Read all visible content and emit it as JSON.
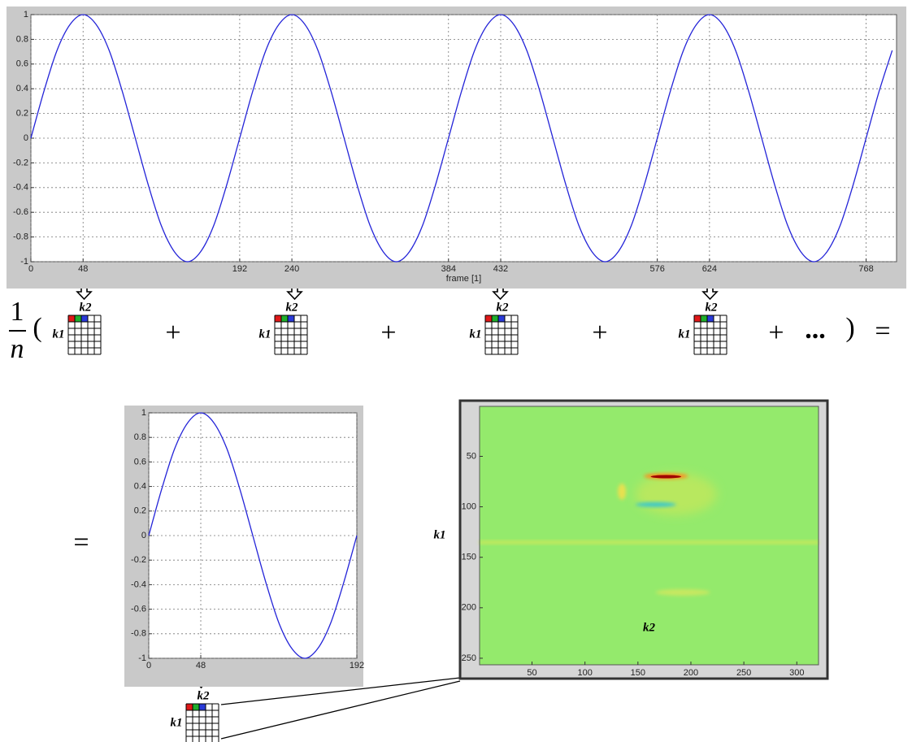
{
  "chart_data": [
    {
      "type": "line",
      "x_label": "frame [1]",
      "x": [
        0,
        12,
        24,
        36,
        48,
        60,
        72,
        84,
        96,
        108,
        120,
        132,
        144,
        156,
        168,
        180,
        192,
        204,
        216,
        228,
        240,
        252,
        264,
        276,
        288,
        300,
        312,
        324,
        336,
        348,
        360,
        372,
        384,
        396,
        408,
        420,
        432,
        444,
        456,
        468,
        480,
        492,
        504,
        516,
        528,
        540,
        552,
        564,
        576,
        588,
        600,
        612,
        624,
        636,
        648,
        660,
        672,
        684,
        696,
        708,
        720,
        732,
        744,
        756,
        768,
        780,
        792
      ],
      "series": [
        {
          "color": "#2424d8",
          "values": [
            0,
            0.38,
            0.71,
            0.92,
            1,
            0.92,
            0.71,
            0.38,
            0,
            -0.38,
            -0.71,
            -0.92,
            -1,
            -0.92,
            -0.71,
            -0.38,
            0,
            0.38,
            0.71,
            0.92,
            1,
            0.92,
            0.71,
            0.38,
            0,
            -0.38,
            -0.71,
            -0.92,
            -1,
            -0.92,
            -0.71,
            -0.38,
            0,
            0.38,
            0.71,
            0.92,
            1,
            0.92,
            0.71,
            0.38,
            0,
            -0.38,
            -0.71,
            -0.92,
            -1,
            -0.92,
            -0.71,
            -0.38,
            0,
            0.38,
            0.71,
            0.92,
            1,
            0.92,
            0.71,
            0.38,
            0,
            -0.38,
            -0.71,
            -0.92,
            -1,
            -0.92,
            -0.71,
            -0.38,
            0,
            0.38,
            0.71
          ]
        }
      ],
      "xlim": [
        0,
        796
      ],
      "xticks": [
        0,
        48,
        192,
        240,
        384,
        432,
        576,
        624,
        768
      ],
      "ylim": [
        -1,
        1
      ],
      "yticks": [
        -1,
        -0.8,
        -0.6,
        -0.4,
        -0.2,
        0,
        0.2,
        0.4,
        0.6,
        0.8,
        1
      ],
      "grid": true
    },
    {
      "type": "line",
      "x": [
        0,
        12,
        24,
        36,
        48,
        60,
        72,
        84,
        96,
        108,
        120,
        132,
        144,
        156,
        168,
        180,
        192
      ],
      "series": [
        {
          "color": "#2424d8",
          "values": [
            0,
            0.38,
            0.71,
            0.92,
            1,
            0.92,
            0.71,
            0.38,
            0,
            -0.38,
            -0.71,
            -0.92,
            -1,
            -0.92,
            -0.71,
            -0.38,
            0
          ]
        }
      ],
      "xlim": [
        0,
        192
      ],
      "xticks": [
        0,
        48,
        192
      ],
      "ylim": [
        -1,
        1
      ],
      "yticks": [
        -1,
        -0.8,
        -0.6,
        -0.4,
        -0.2,
        0,
        0.2,
        0.4,
        0.6,
        0.8,
        1
      ],
      "grid": true
    },
    {
      "type": "heatmap",
      "x_label": "k2",
      "y_label": "k1",
      "xlim": [
        0.5,
        320.5
      ],
      "xticks": [
        50,
        100,
        150,
        200,
        250,
        300
      ],
      "ylim": [
        256.5,
        0.5
      ],
      "yticks": [
        50,
        100,
        150,
        200,
        250
      ]
    }
  ],
  "equation": {
    "numerator": "1",
    "denominator": "n",
    "open_paren": "(",
    "close_paren": ")",
    "ellipsis": "...",
    "operators": [
      "+",
      "+",
      "+",
      "+"
    ],
    "equals": [
      "=",
      "="
    ],
    "terms": [
      {
        "col": "k2",
        "row": "k1"
      },
      {
        "col": "k2",
        "row": "k1"
      },
      {
        "col": "k2",
        "row": "k1"
      },
      {
        "col": "k2",
        "row": "k1"
      }
    ],
    "result_term": {
      "col": "k2",
      "row": "k1"
    }
  }
}
